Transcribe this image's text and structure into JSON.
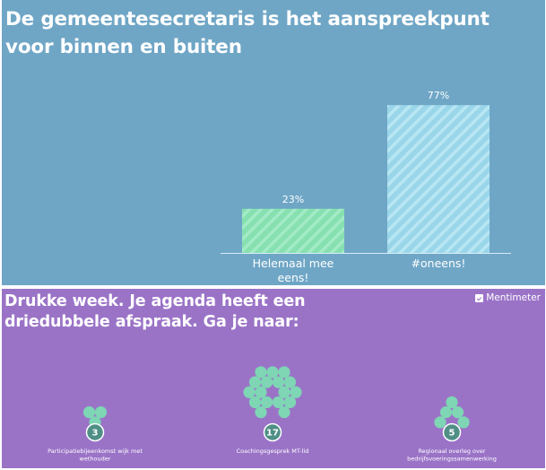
{
  "slides": [
    {
      "question": "De gemeentesecretaris is het aanspreekpunt voor binnen en buiten",
      "colors": {
        "background": "#6fa6c6",
        "bar1": "#86e0b0",
        "bar2": "#9ad6ea"
      }
    },
    {
      "question": "Drukke week. Je agenda heeft een driedubbele afspraak. Ga je naar:",
      "brand": "Mentimeter",
      "colors": {
        "background": "#9a73c7",
        "dots": "#7ed6b4",
        "badge": "#4f8f86"
      }
    }
  ],
  "chart_data": [
    {
      "type": "bar",
      "categories": [
        "Helemaal mee eens!",
        "#oneens!"
      ],
      "values": [
        23,
        77
      ],
      "value_labels": [
        "23%",
        "77%"
      ],
      "unit": "%",
      "ylim": [
        0,
        100
      ],
      "grid": false
    },
    {
      "type": "scatter",
      "categories": [
        "Participatiebijeenkomst wijk met wethouder",
        "Coachingsgesprek MT-lid",
        "Regionaal overleg over bedrijfsvoeringssamenwerking"
      ],
      "values": [
        3,
        17,
        5
      ],
      "value_labels": [
        "3",
        "17",
        "5"
      ],
      "grid": false
    }
  ]
}
